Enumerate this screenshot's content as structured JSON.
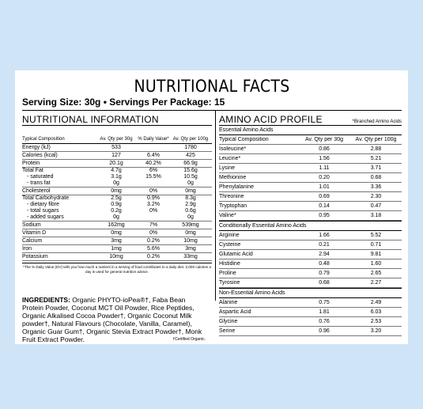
{
  "title": "NUTRITIONAL FACTS",
  "serving": "Serving Size: 30g  •  Servings Per Package: 15",
  "nutrition": {
    "header": "NUTRITIONAL INFORMATION",
    "col_labels": [
      "Typical Composition",
      "Av. Qty per 30g",
      "% Daily Value*",
      "Av. Qty per 100g"
    ],
    "rows": [
      {
        "name": "Energy (kJ)",
        "a": "533",
        "dv": "",
        "b": "1780"
      },
      {
        "name": "Calories (kcal)",
        "a": "127",
        "dv": "6.4%",
        "b": "425"
      },
      {
        "name": "Protein",
        "a": "20.1g",
        "dv": "40.2%",
        "b": "66.9g"
      },
      {
        "name": "Total Fat",
        "a": "4.7g",
        "dv": "6%",
        "b": "15.6g",
        "subs": [
          {
            "name": "- saturated",
            "a": "3.1g",
            "dv": "15.5%",
            "b": "10.5g"
          },
          {
            "name": "- trans fat",
            "a": "0g",
            "dv": "",
            "b": "0g"
          }
        ]
      },
      {
        "name": "Cholesterol",
        "a": "0mg",
        "dv": "0%",
        "b": "0mg"
      },
      {
        "name": "Total Carbohydrate",
        "a": "2.5g",
        "dv": "0.9%",
        "b": "8.3g",
        "subs": [
          {
            "name": "- dietary fibre",
            "a": "0.9g",
            "dv": "3.2%",
            "b": "2.9g"
          },
          {
            "name": "- total sugars",
            "a": "0.2g",
            "dv": "",
            "b": "0.6g"
          },
          {
            "name": "- added sugars",
            "a": "0g",
            "dv": "0%",
            "b": "0g"
          }
        ]
      },
      {
        "name": "Sodium",
        "a": "162mg",
        "dv": "7%",
        "b": "539mg"
      },
      {
        "name": "Vitamin D",
        "a": "0mg",
        "dv": "0%",
        "b": "0mg"
      },
      {
        "name": "Calcium",
        "a": "3mg",
        "dv": "0.2%",
        "b": "10mg"
      },
      {
        "name": "Iron",
        "a": "1mg",
        "dv": "5.6%",
        "b": "3mg"
      },
      {
        "name": "Potassium",
        "a": "10mg",
        "dv": "0.2%",
        "b": "33mg"
      }
    ],
    "footnote": "*The % Daily Value (DV) tells you how much a nutrient in a serving of food contributes to a daily diet. 2,000 calories a day is used for general nutrition advice."
  },
  "amino": {
    "header": "AMINO ACID PROFILE",
    "note": "*Branched Amino Acids",
    "col_labels": [
      "Typical Composition",
      "Av. Qty per 30g",
      "Av. Qty per 100g"
    ],
    "groups": [
      {
        "title": "Essential Amino Acids",
        "rows": [
          [
            "Isoleucine*",
            "0.86",
            "2.88"
          ],
          [
            "Leucine*",
            "1.56",
            "5.21"
          ],
          [
            "Lysine",
            "1.11",
            "3.71"
          ],
          [
            "Methionine",
            "0.20",
            "0.68"
          ],
          [
            "Phenylalanine",
            "1.01",
            "3.36"
          ],
          [
            "Threonine",
            "0.69",
            "2.30"
          ],
          [
            "Tryptophan",
            "0.14",
            "0.47"
          ],
          [
            "Valine*",
            "0.95",
            "3.18"
          ]
        ]
      },
      {
        "title": "Conditionally Essential Amino Acids",
        "rows": [
          [
            "Arginine",
            "1.66",
            "5.52"
          ],
          [
            "Cysteine",
            "0.21",
            "0.71"
          ],
          [
            "Glutamic Acid",
            "2.94",
            "9.81"
          ],
          [
            "Histidine",
            "0.48",
            "1.60"
          ],
          [
            "Proline",
            "0.79",
            "2.65"
          ],
          [
            "Tyrosine",
            "0.68",
            "2.27"
          ]
        ]
      },
      {
        "title": "Non-Essential Amino Acids",
        "rows": [
          [
            "Alanine",
            "0.75",
            "2.49"
          ],
          [
            "Aspartic Acid",
            "1.81",
            "6.03"
          ],
          [
            "Glycine",
            "0.76",
            "2.53"
          ],
          [
            "Serine",
            "0.96",
            "3.20"
          ]
        ]
      }
    ]
  },
  "ingredients": {
    "label": "INGREDIENTS:",
    "text": " Organic PHYTO-ioPea®†, Faba Bean Protein Powder, Coconut MCT Oil Powder, Rice Peptides, Organic Alkalised Cocoa Powder†, Organic Coconut Milk powder†, Natural Flavours (Chocolate, Vanilla, Caramel), Organic Guar Gum†, Organic Stevia Extract Powder†, Monk Fruit Extract Powder.",
    "certified": "†Certified Organic."
  }
}
